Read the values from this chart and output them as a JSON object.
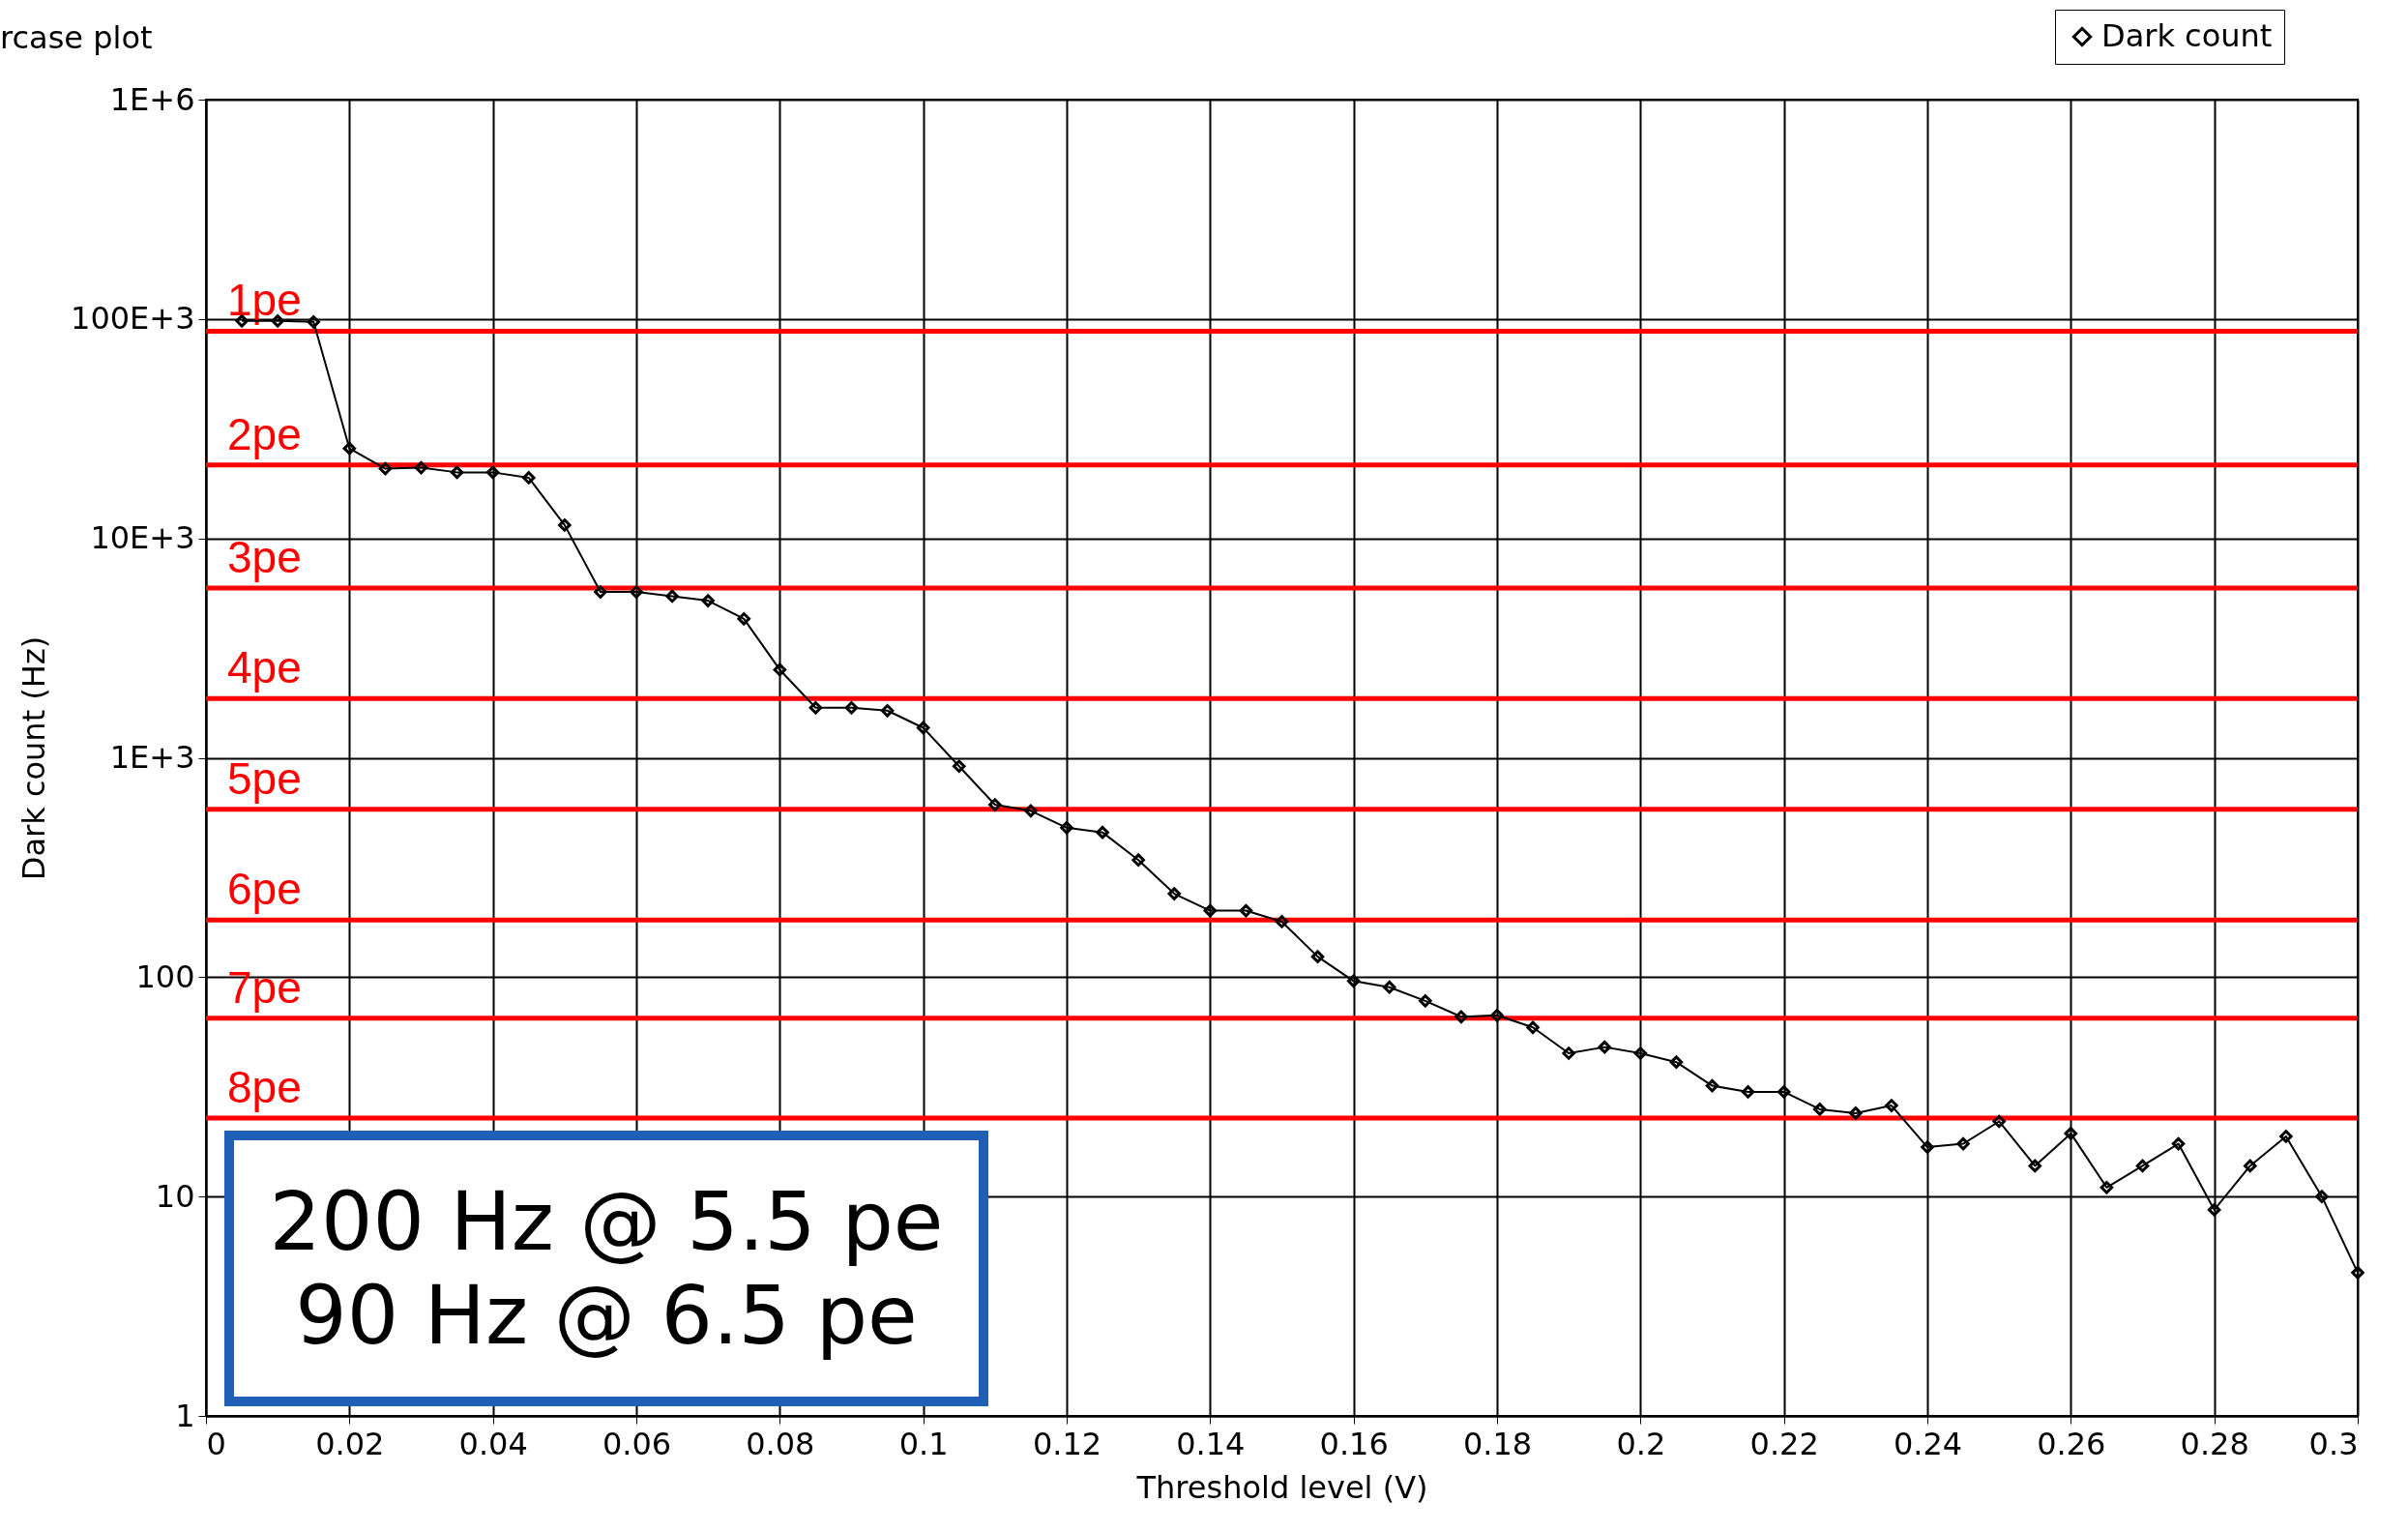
{
  "chart_data": {
    "type": "line",
    "title": "rcase plot",
    "xlabel": "Threshold level (V)",
    "ylabel": "Dark count (Hz)",
    "x": [
      0.005,
      0.01,
      0.015,
      0.02,
      0.025,
      0.03,
      0.035,
      0.04,
      0.045,
      0.05,
      0.055,
      0.06,
      0.065,
      0.07,
      0.075,
      0.08,
      0.085,
      0.09,
      0.095,
      0.1,
      0.105,
      0.11,
      0.115,
      0.12,
      0.125,
      0.13,
      0.135,
      0.14,
      0.145,
      0.15,
      0.155,
      0.16,
      0.165,
      0.17,
      0.175,
      0.18,
      0.185,
      0.19,
      0.195,
      0.2,
      0.205,
      0.21,
      0.215,
      0.22,
      0.225,
      0.23,
      0.235,
      0.24,
      0.245,
      0.25,
      0.255,
      0.26,
      0.265,
      0.27,
      0.275,
      0.28,
      0.285,
      0.29,
      0.295,
      0.3
    ],
    "series": [
      {
        "name": "Dark count",
        "color": "#000000",
        "values": [
          98000,
          98000,
          97000,
          25700,
          20800,
          21000,
          20000,
          20000,
          18900,
          11500,
          5700,
          5700,
          5450,
          5200,
          4300,
          2520,
          1690,
          1690,
          1640,
          1370,
          915,
          611,
          573,
          480,
          457,
          342,
          240,
          201,
          201,
          179,
          124,
          96,
          90,
          78,
          66,
          67,
          59,
          45,
          48,
          45,
          41,
          32,
          30,
          30,
          25,
          24,
          26,
          16.8,
          17.4,
          22,
          13.8,
          19.4,
          11,
          13.8,
          17.4,
          8.7,
          13.8,
          18.8,
          10,
          4.5
        ]
      }
    ],
    "log": "y",
    "xlim": [
      0,
      0.3
    ],
    "ylim": [
      1,
      1000000
    ],
    "xticks": [
      0,
      0.02,
      0.04,
      0.06,
      0.08,
      0.1,
      0.12,
      0.14,
      0.16,
      0.18,
      0.2,
      0.22,
      0.24,
      0.26,
      0.28,
      0.3
    ],
    "yticks": [
      1,
      10,
      100,
      {
        "value": 1000,
        "label": "1E+3"
      },
      {
        "value": 10000,
        "label": "10E+3"
      },
      {
        "value": 100000,
        "label": "100E+3"
      },
      {
        "value": 1000000,
        "label": "1E+6"
      }
    ],
    "grid": true,
    "legend": "top right",
    "marker": "diamond",
    "line_style": "solid",
    "ref_lines": [
      {
        "axis": "y",
        "value": 88000,
        "label": "1pe",
        "color": "#ff0000"
      },
      {
        "axis": "y",
        "value": 21600,
        "label": "2pe",
        "color": "#ff0000"
      },
      {
        "axis": "y",
        "value": 5940,
        "label": "3pe",
        "color": "#ff0000"
      },
      {
        "axis": "y",
        "value": 1860,
        "label": "4pe",
        "color": "#ff0000"
      },
      {
        "axis": "y",
        "value": 582,
        "label": "5pe",
        "color": "#ff0000"
      },
      {
        "axis": "y",
        "value": 182,
        "label": "6pe",
        "color": "#ff0000"
      },
      {
        "axis": "y",
        "value": 65,
        "label": "7pe",
        "color": "#ff0000"
      },
      {
        "axis": "y",
        "value": 22.8,
        "label": "8pe",
        "color": "#ff0000"
      }
    ],
    "annotations": [
      "200 Hz @ 5.5 pe",
      "90 Hz @ 6.5 pe"
    ]
  }
}
